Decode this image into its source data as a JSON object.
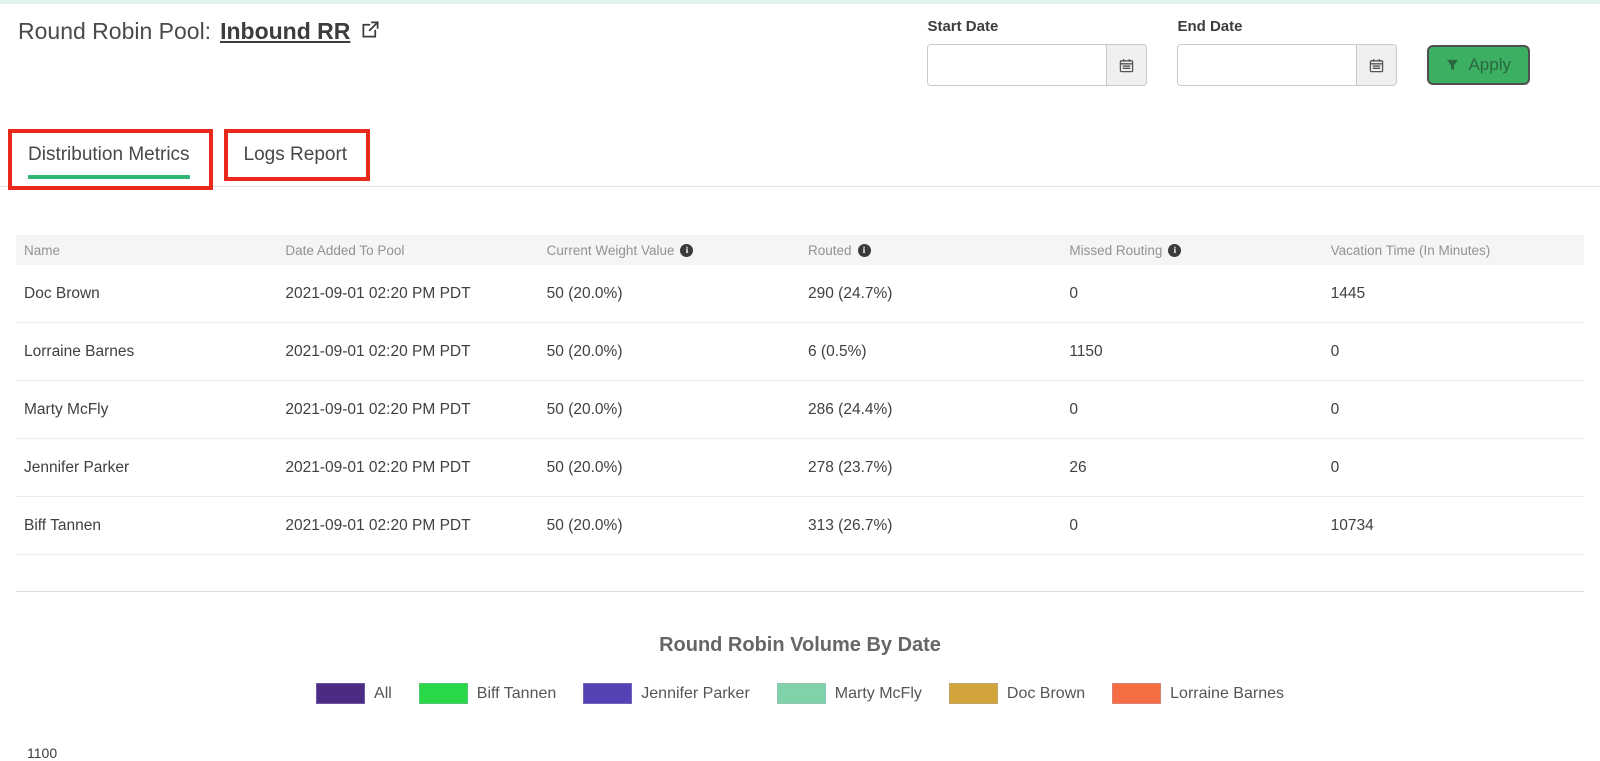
{
  "page": {
    "title_prefix": "Round Robin Pool:",
    "pool_name": "Inbound RR"
  },
  "filters": {
    "start_date": {
      "label": "Start Date",
      "value": ""
    },
    "end_date": {
      "label": "End Date",
      "value": ""
    },
    "apply_label": "Apply"
  },
  "tabs": [
    {
      "label": "Distribution Metrics",
      "active": true
    },
    {
      "label": "Logs Report",
      "active": false
    }
  ],
  "table": {
    "columns": [
      {
        "label": "Name",
        "info": false
      },
      {
        "label": "Date Added To Pool",
        "info": false
      },
      {
        "label": "Current Weight Value",
        "info": true
      },
      {
        "label": "Routed",
        "info": true
      },
      {
        "label": "Missed Routing",
        "info": true
      },
      {
        "label": "Vacation Time (In Minutes)",
        "info": false
      }
    ],
    "rows": [
      [
        "Doc Brown",
        "2021-09-01 02:20 PM PDT",
        "50 (20.0%)",
        "290 (24.7%)",
        "0",
        "1445"
      ],
      [
        "Lorraine Barnes",
        "2021-09-01 02:20 PM PDT",
        "50 (20.0%)",
        "6 (0.5%)",
        "1150",
        "0"
      ],
      [
        "Marty McFly",
        "2021-09-01 02:20 PM PDT",
        "50 (20.0%)",
        "286 (24.4%)",
        "0",
        "0"
      ],
      [
        "Jennifer Parker",
        "2021-09-01 02:20 PM PDT",
        "50 (20.0%)",
        "278 (23.7%)",
        "26",
        "0"
      ],
      [
        "Biff Tannen",
        "2021-09-01 02:20 PM PDT",
        "50 (20.0%)",
        "313 (26.7%)",
        "0",
        "10734"
      ]
    ]
  },
  "chart": {
    "title": "Round Robin Volume By Date",
    "legend": [
      {
        "label": "All",
        "color": "#4b2c85"
      },
      {
        "label": "Biff Tannen",
        "color": "#28d847"
      },
      {
        "label": "Jennifer Parker",
        "color": "#5443b5"
      },
      {
        "label": "Marty McFly",
        "color": "#80d3a8"
      },
      {
        "label": "Doc Brown",
        "color": "#d2a43c"
      },
      {
        "label": "Lorraine Barnes",
        "color": "#f56e43"
      }
    ],
    "y_axis_partial_tick": "1100"
  },
  "icons": {
    "external_link": "external-link-icon",
    "calendar": "calendar-icon",
    "filter": "funnel-icon",
    "info": "info-icon",
    "info_glyph": "i"
  },
  "colors": {
    "accent_green": "#2eb473",
    "apply_green": "#3caf63",
    "annotation_red": "#e8291c",
    "top_bar_mint": "#e2f3eb"
  },
  "annotations": {
    "description": "red highlight boxes drawn around the two tabs",
    "color": "#e8291c"
  }
}
